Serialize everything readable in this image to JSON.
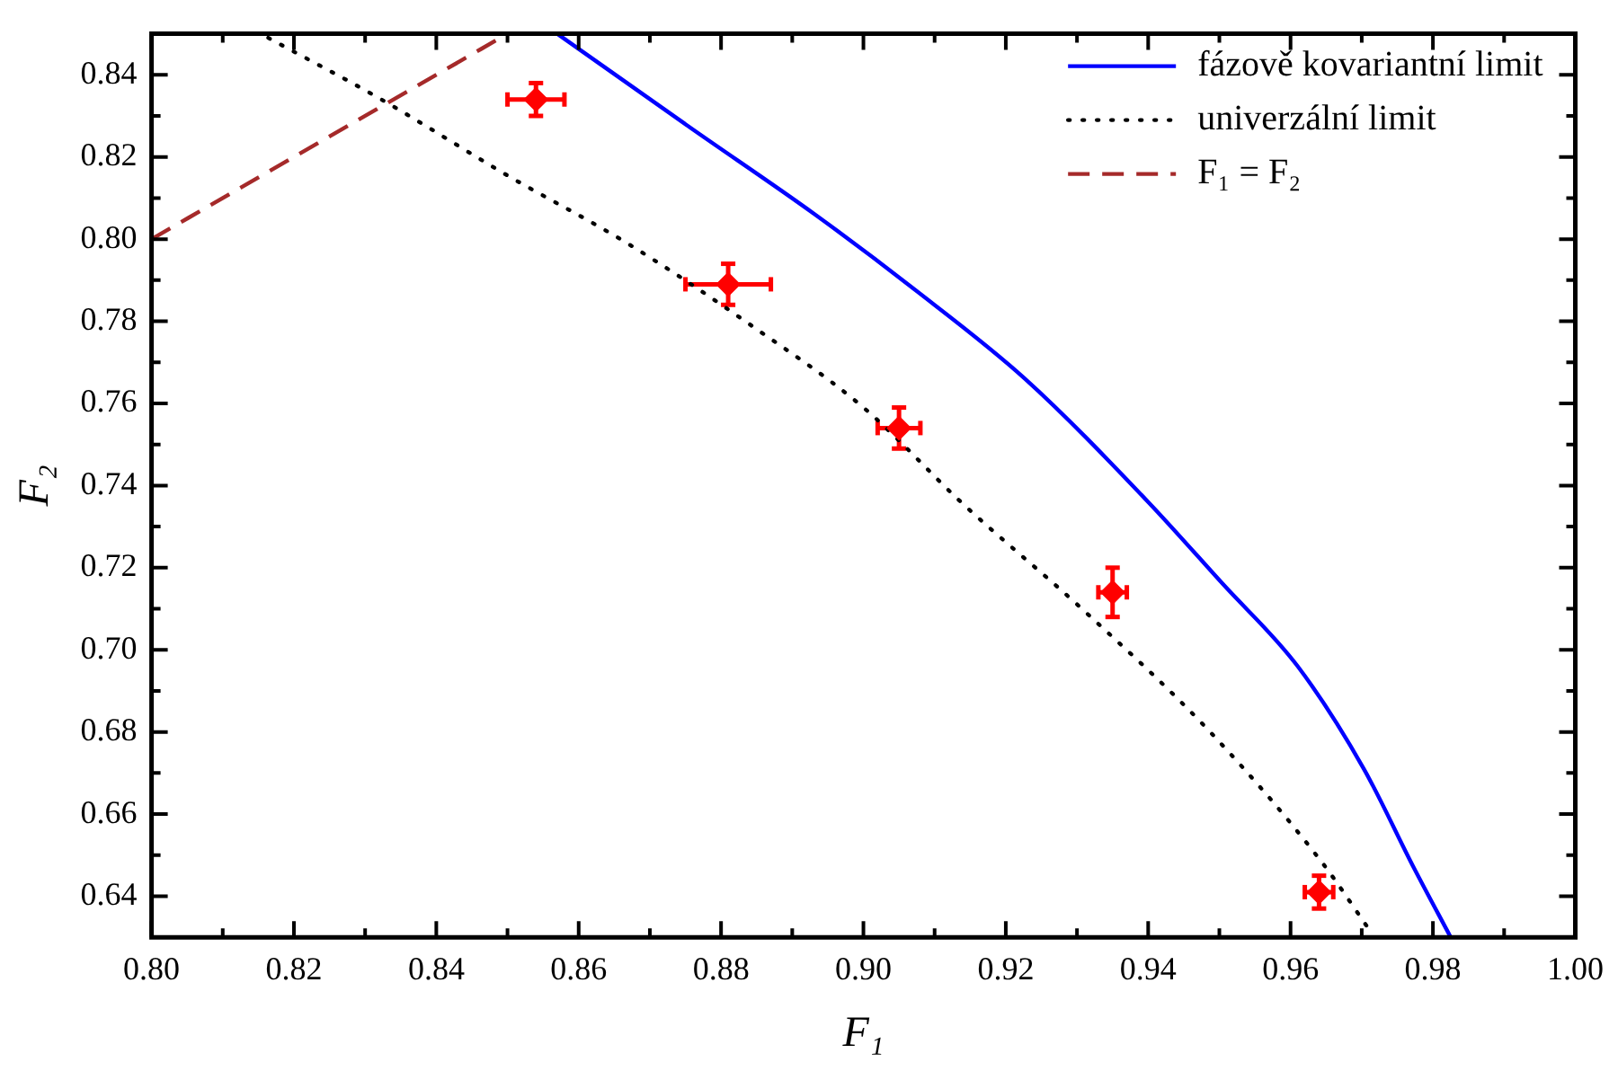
{
  "chart_data": {
    "type": "line",
    "xlabel": "F₁",
    "ylabel": "F₂",
    "legend": "top right",
    "grid": false,
    "xlim": [
      0.8,
      1.0
    ],
    "ylim": [
      0.63,
      0.85
    ],
    "xticks": [
      {
        "value": 0.8,
        "label": "0.80"
      },
      {
        "value": 0.81,
        "label": null
      },
      {
        "value": 0.82,
        "label": "0.82"
      },
      {
        "value": 0.83,
        "label": null
      },
      {
        "value": 0.84,
        "label": "0.84"
      },
      {
        "value": 0.85,
        "label": null
      },
      {
        "value": 0.86,
        "label": "0.86"
      },
      {
        "value": 0.87,
        "label": null
      },
      {
        "value": 0.88,
        "label": "0.88"
      },
      {
        "value": 0.89,
        "label": null
      },
      {
        "value": 0.9,
        "label": "0.90"
      },
      {
        "value": 0.91,
        "label": null
      },
      {
        "value": 0.92,
        "label": "0.92"
      },
      {
        "value": 0.93,
        "label": null
      },
      {
        "value": 0.94,
        "label": "0.94"
      },
      {
        "value": 0.95,
        "label": null
      },
      {
        "value": 0.96,
        "label": "0.96"
      },
      {
        "value": 0.97,
        "label": null
      },
      {
        "value": 0.98,
        "label": "0.98"
      },
      {
        "value": 0.99,
        "label": null
      },
      {
        "value": 1.0,
        "label": "1.00"
      }
    ],
    "yticks": [
      {
        "value": 0.64,
        "label": "0.64"
      },
      {
        "value": 0.65,
        "label": null
      },
      {
        "value": 0.66,
        "label": "0.66"
      },
      {
        "value": 0.67,
        "label": null
      },
      {
        "value": 0.68,
        "label": "0.68"
      },
      {
        "value": 0.69,
        "label": null
      },
      {
        "value": 0.7,
        "label": "0.70"
      },
      {
        "value": 0.71,
        "label": null
      },
      {
        "value": 0.72,
        "label": "0.72"
      },
      {
        "value": 0.73,
        "label": null
      },
      {
        "value": 0.74,
        "label": "0.74"
      },
      {
        "value": 0.75,
        "label": null
      },
      {
        "value": 0.76,
        "label": "0.76"
      },
      {
        "value": 0.77,
        "label": null
      },
      {
        "value": 0.78,
        "label": "0.78"
      },
      {
        "value": 0.79,
        "label": null
      },
      {
        "value": 0.8,
        "label": "0.80"
      },
      {
        "value": 0.81,
        "label": null
      },
      {
        "value": 0.82,
        "label": "0.82"
      },
      {
        "value": 0.83,
        "label": null
      },
      {
        "value": 0.84,
        "label": "0.84"
      }
    ],
    "series": [
      {
        "name": "fázově kovariantní limit",
        "color": "#0000ff",
        "line_style": "solid",
        "marker": "none",
        "x": [
          0.857,
          0.8758,
          0.8932,
          0.907,
          0.9227,
          0.94,
          0.9505,
          0.961,
          0.9703,
          0.9773,
          0.9825
        ],
        "values": [
          0.85,
          0.827,
          0.806,
          0.788,
          0.766,
          0.736,
          0.716,
          0.696,
          0.671,
          0.647,
          0.63
        ]
      },
      {
        "name": "univerzální limit",
        "color": "#000000",
        "line_style": "dotted",
        "marker": "none",
        "x": [
          0.8164,
          0.8323,
          0.8497,
          0.867,
          0.8844,
          0.9,
          0.914,
          0.931,
          0.9487,
          0.9643,
          0.9714
        ],
        "values": [
          0.849,
          0.834,
          0.8158,
          0.7988,
          0.7788,
          0.759,
          0.7355,
          0.7095,
          0.68,
          0.6485,
          0.631
        ]
      },
      {
        "name": "F₁ = F₂",
        "color": "#a52a2a",
        "line_style": "dashed",
        "marker": "none",
        "x": [
          0.8,
          0.85
        ],
        "values": [
          0.8,
          0.85
        ]
      },
      {
        "type": "scatter",
        "color": "#ff0000",
        "marker": "diamond",
        "x": [
          0.854,
          0.881,
          0.905,
          0.935,
          0.964
        ],
        "values": [
          0.834,
          0.789,
          0.754,
          0.714,
          0.641
        ],
        "errors": [
          0.004,
          0.005,
          0.005,
          0.006,
          0.004
        ],
        "xerrors": [
          0.004,
          0.006,
          0.003,
          0.002,
          0.002
        ]
      }
    ]
  }
}
